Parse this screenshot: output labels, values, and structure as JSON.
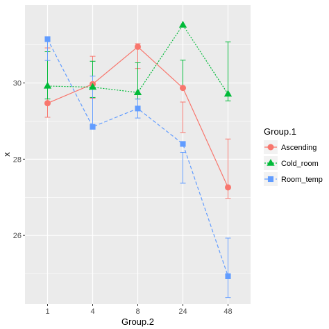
{
  "chart_data": {
    "type": "line",
    "xlabel": "Group.2",
    "ylabel": "x",
    "categories": [
      "1",
      "4",
      "8",
      "24",
      "48"
    ],
    "ylim": [
      24.2,
      32.05
    ],
    "yticks": [
      26,
      28,
      30
    ],
    "grid": true,
    "legend": {
      "title": "Group.1",
      "placement": "right"
    },
    "series": [
      {
        "name": "Ascending",
        "color": "#F8766D",
        "marker": "circle",
        "line_style": "solid",
        "values": [
          29.47,
          29.97,
          30.95,
          29.87,
          27.26
        ],
        "error_low": [
          29.1,
          29.6,
          30.38,
          28.7,
          26.97
        ],
        "error_high": [
          30.92,
          30.7,
          31.03,
          29.5,
          28.53
        ]
      },
      {
        "name": "Cold_room",
        "color": "#00BA38",
        "marker": "triangle",
        "line_style": "dotted",
        "values": [
          29.92,
          29.89,
          29.75,
          31.52,
          29.71
        ],
        "error_low": [
          29.58,
          29.62,
          29.58,
          29.85,
          29.53
        ],
        "error_high": [
          30.82,
          30.57,
          30.53,
          30.6,
          31.08
        ]
      },
      {
        "name": "Room_temp",
        "color": "#619CFF",
        "marker": "square",
        "line_style": "dashed",
        "values": [
          31.15,
          28.85,
          29.33,
          28.4,
          24.93
        ],
        "error_low": [
          30.59,
          28.83,
          29.08,
          27.37,
          24.37
        ],
        "error_high": [
          31.15,
          30.18,
          29.58,
          28.18,
          25.93
        ]
      }
    ]
  }
}
